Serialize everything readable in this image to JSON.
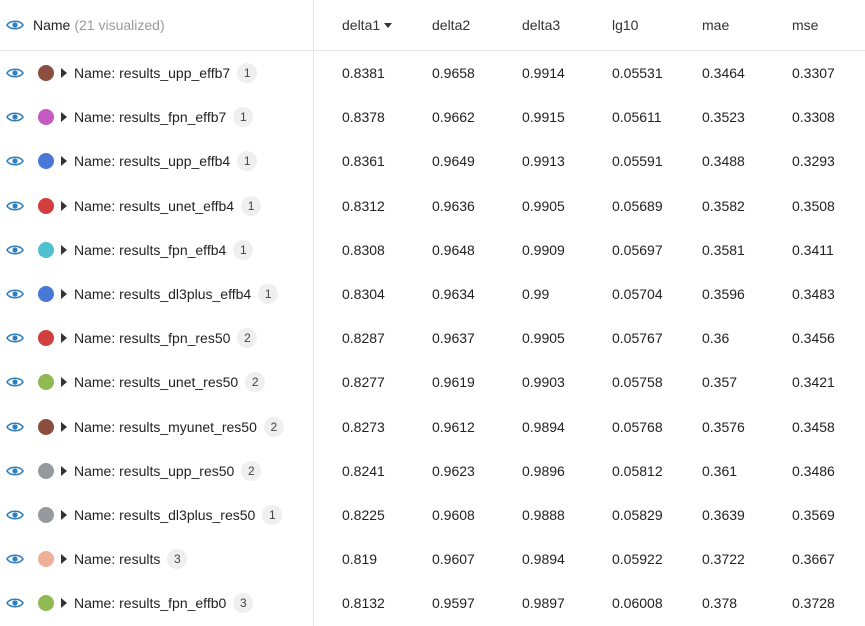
{
  "header": {
    "name_label": "Name",
    "visualized": "(21 visualized)",
    "columns": [
      "delta1",
      "delta2",
      "delta3",
      "lg10",
      "mae",
      "mse"
    ],
    "sorted_column": "delta1",
    "sort_direction": "descending"
  },
  "colors": {
    "eye": "#2f7fbd"
  },
  "rows": [
    {
      "name": "Name: results_upp_effb7",
      "badge": "1",
      "color": "#8c4f3f",
      "values": [
        "0.8381",
        "0.9658",
        "0.9914",
        "0.05531",
        "0.3464",
        "0.3307"
      ]
    },
    {
      "name": "Name: results_fpn_effb7",
      "badge": "1",
      "color": "#c35bc1",
      "values": [
        "0.8378",
        "0.9662",
        "0.9915",
        "0.05611",
        "0.3523",
        "0.3308"
      ]
    },
    {
      "name": "Name: results_upp_effb4",
      "badge": "1",
      "color": "#4a78d6",
      "values": [
        "0.8361",
        "0.9649",
        "0.9913",
        "0.05591",
        "0.3488",
        "0.3293"
      ]
    },
    {
      "name": "Name: results_unet_effb4",
      "badge": "1",
      "color": "#d23e3e",
      "values": [
        "0.8312",
        "0.9636",
        "0.9905",
        "0.05689",
        "0.3582",
        "0.3508"
      ]
    },
    {
      "name": "Name: results_fpn_effb4",
      "badge": "1",
      "color": "#4fc0cf",
      "values": [
        "0.8308",
        "0.9648",
        "0.9909",
        "0.05697",
        "0.3581",
        "0.3411"
      ]
    },
    {
      "name": "Name: results_dl3plus_effb4",
      "badge": "1",
      "color": "#4a78d6",
      "values": [
        "0.8304",
        "0.9634",
        "0.99",
        "0.05704",
        "0.3596",
        "0.3483"
      ]
    },
    {
      "name": "Name: results_fpn_res50",
      "badge": "2",
      "color": "#d23e3e",
      "values": [
        "0.8287",
        "0.9637",
        "0.9905",
        "0.05767",
        "0.36",
        "0.3456"
      ]
    },
    {
      "name": "Name: results_unet_res50",
      "badge": "2",
      "color": "#8fba52",
      "values": [
        "0.8277",
        "0.9619",
        "0.9903",
        "0.05758",
        "0.357",
        "0.3421"
      ]
    },
    {
      "name": "Name: results_myunet_res50",
      "badge": "2",
      "color": "#8c4f3f",
      "values": [
        "0.8273",
        "0.9612",
        "0.9894",
        "0.05768",
        "0.3576",
        "0.3458"
      ]
    },
    {
      "name": "Name: results_upp_res50",
      "badge": "2",
      "color": "#96999e",
      "values": [
        "0.8241",
        "0.9623",
        "0.9896",
        "0.05812",
        "0.361",
        "0.3486"
      ]
    },
    {
      "name": "Name: results_dl3plus_res50",
      "badge": "1",
      "color": "#96999e",
      "values": [
        "0.8225",
        "0.9608",
        "0.9888",
        "0.05829",
        "0.3639",
        "0.3569"
      ]
    },
    {
      "name": "Name: results",
      "badge": "3",
      "color": "#eeb098",
      "values": [
        "0.819",
        "0.9607",
        "0.9894",
        "0.05922",
        "0.3722",
        "0.3667"
      ]
    },
    {
      "name": "Name: results_fpn_effb0",
      "badge": "3",
      "color": "#8fba52",
      "values": [
        "0.8132",
        "0.9597",
        "0.9897",
        "0.06008",
        "0.378",
        "0.3728"
      ]
    }
  ]
}
